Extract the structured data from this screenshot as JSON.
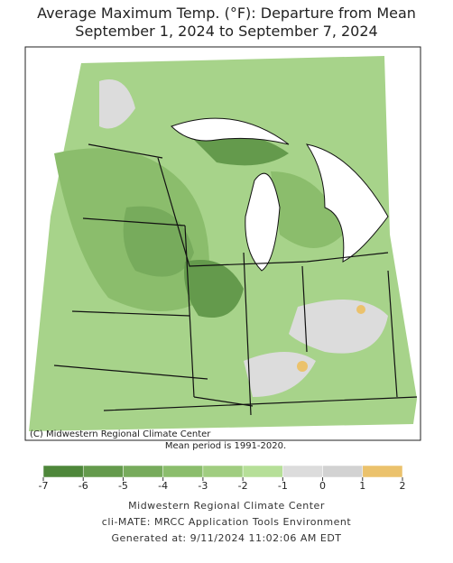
{
  "header": {
    "title": "Average Maximum Temp. (°F): Departure from Mean",
    "subtitle": "September 1, 2024 to September 7, 2024"
  },
  "map": {
    "credit": "(C) Midwestern Regional Climate Center",
    "note": "Mean period is 1991-2020."
  },
  "legend": {
    "ticks": [
      -7,
      -6,
      -5,
      -4,
      -3,
      -2,
      -1,
      0,
      1,
      2
    ],
    "colors": [
      "#4e873a",
      "#649a4c",
      "#77ab5c",
      "#8bbd6c",
      "#a0cd80",
      "#b6df98",
      "#dcdcdc",
      "#d2d2d2",
      "#ebc26c"
    ]
  },
  "footer": {
    "lines": [
      "Midwestern Regional Climate Center",
      "cli-MATE: MRCC Application Tools Environment",
      "Generated at: 9/11/2024 11:02:06 AM EDT"
    ]
  }
}
